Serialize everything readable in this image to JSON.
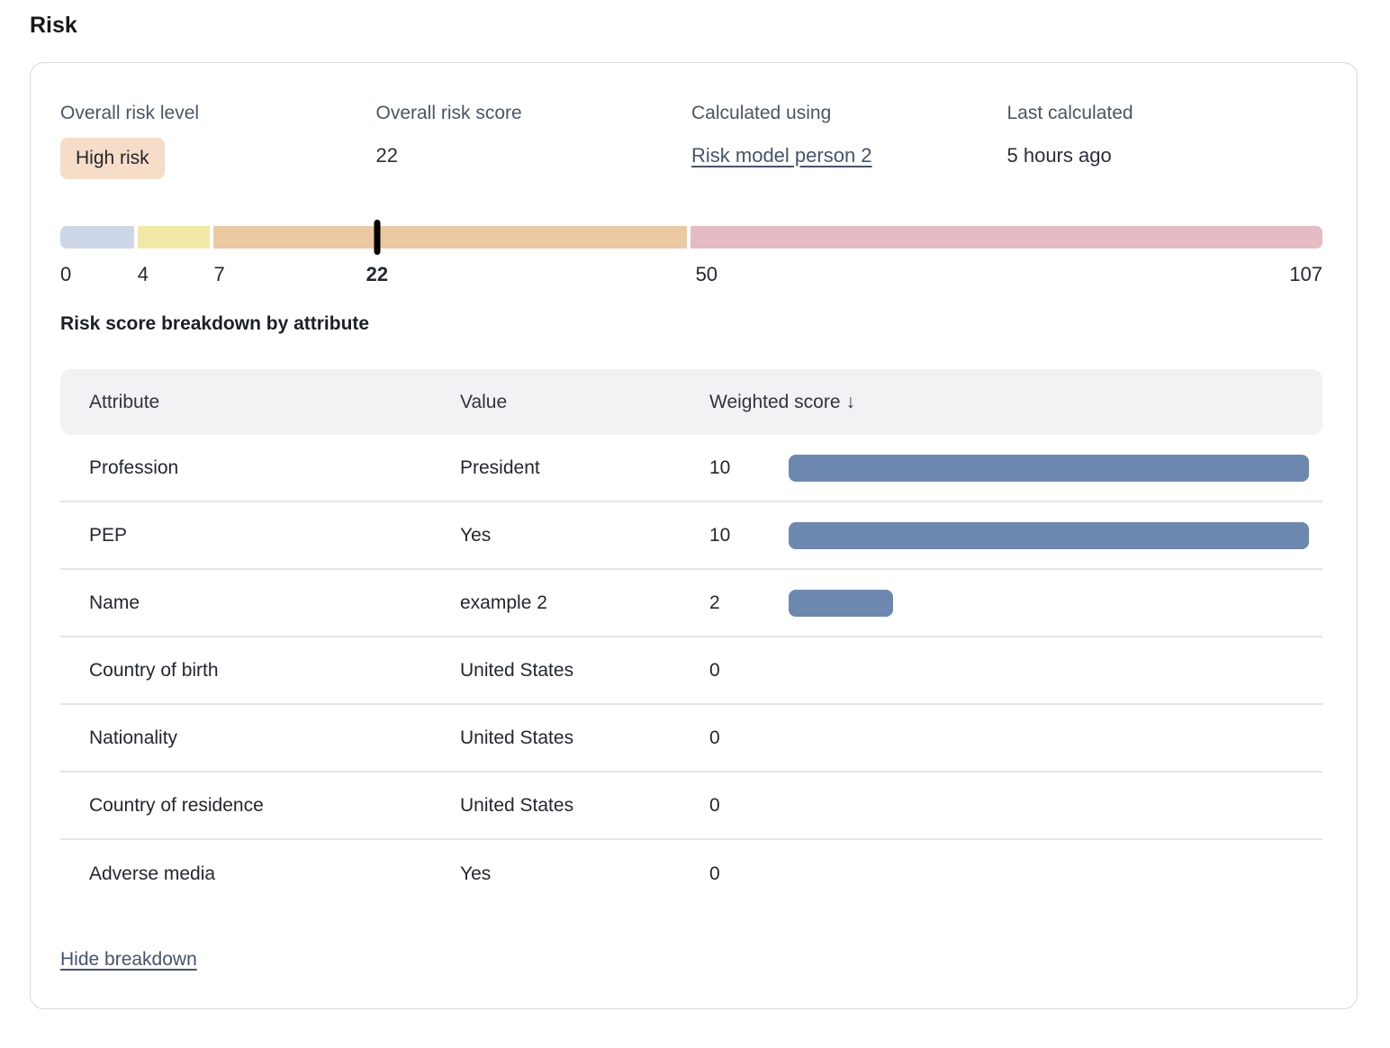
{
  "page": {
    "title": "Risk"
  },
  "summary": {
    "risk_level": {
      "label": "Overall risk level",
      "value": "High risk"
    },
    "risk_score": {
      "label": "Overall risk score",
      "value": "22"
    },
    "calculated_using": {
      "label": "Calculated using",
      "value": "Risk model person 2"
    },
    "last_calculated": {
      "label": "Last calculated",
      "value": "5 hours ago"
    }
  },
  "scale": {
    "marker_pct": 25.1,
    "marker_value": "22",
    "segments": [
      {
        "name": "low",
        "color": "#cdd7e8",
        "start_pct": 0,
        "end_pct": 5.84
      },
      {
        "name": "medium",
        "color": "#f2e8a6",
        "start_pct": 6.13,
        "end_pct": 11.82
      },
      {
        "name": "high",
        "color": "#ebc9a3",
        "start_pct": 12.11,
        "end_pct": 49.64
      },
      {
        "name": "very-high",
        "color": "#e5bcc4",
        "start_pct": 49.93,
        "end_pct": 100
      }
    ],
    "ticks": [
      {
        "label": "0",
        "pct": 0,
        "align": "left",
        "bold": false
      },
      {
        "label": "4",
        "pct": 6.55,
        "align": "center",
        "bold": false
      },
      {
        "label": "7",
        "pct": 12.6,
        "align": "center",
        "bold": false
      },
      {
        "label": "22",
        "pct": 25.1,
        "align": "center",
        "bold": true
      },
      {
        "label": "50",
        "pct": 51.2,
        "align": "center",
        "bold": false
      },
      {
        "label": "107",
        "pct": 100,
        "align": "right",
        "bold": false
      }
    ]
  },
  "breakdown": {
    "heading": "Risk score breakdown by attribute",
    "columns": {
      "attribute": "Attribute",
      "value": "Value",
      "score": "Weighted score"
    },
    "sort_icon": "↓",
    "max_score": 10,
    "bar_color": "#6d88b0",
    "rows": [
      {
        "attribute": "Profession",
        "value": "President",
        "score": 10
      },
      {
        "attribute": "PEP",
        "value": "Yes",
        "score": 10
      },
      {
        "attribute": "Name",
        "value": "example 2",
        "score": 2
      },
      {
        "attribute": "Country of birth",
        "value": "United States",
        "score": 0
      },
      {
        "attribute": "Nationality",
        "value": "United States",
        "score": 0
      },
      {
        "attribute": "Country of residence",
        "value": "United States",
        "score": 0
      },
      {
        "attribute": "Adverse media",
        "value": "Yes",
        "score": 0
      }
    ],
    "hide_link": "Hide breakdown"
  }
}
